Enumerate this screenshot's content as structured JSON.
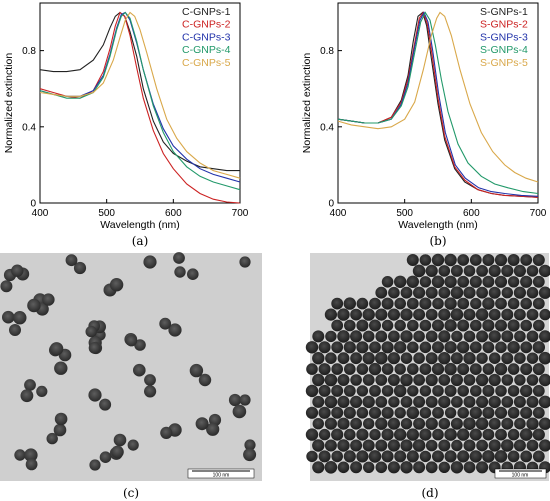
{
  "chart_data": [
    {
      "type": "line",
      "panel_label": "(a)",
      "xlabel": "Wavelength (nm)",
      "ylabel": "Normalized extinction",
      "xlim": [
        400,
        700
      ],
      "ylim": [
        0,
        1.05
      ],
      "xticks": [
        "400",
        "500",
        "600",
        "700"
      ],
      "yticks": [
        "0",
        "0.4",
        "0.8"
      ],
      "legend_position": "top-right",
      "series": [
        {
          "name": "C-GNPs-1",
          "color": "#222222",
          "x": [
            400,
            420,
            440,
            460,
            480,
            495,
            505,
            513,
            520,
            527,
            535,
            545,
            555,
            570,
            585,
            600,
            620,
            640,
            660,
            680,
            700
          ],
          "y": [
            0.7,
            0.69,
            0.69,
            0.7,
            0.75,
            0.83,
            0.92,
            0.98,
            1.0,
            0.98,
            0.9,
            0.77,
            0.6,
            0.43,
            0.32,
            0.26,
            0.22,
            0.19,
            0.18,
            0.17,
            0.17
          ]
        },
        {
          "name": "C-GNPs-2",
          "color": "#cc2222",
          "x": [
            400,
            420,
            440,
            460,
            480,
            495,
            505,
            513,
            520,
            527,
            535,
            545,
            555,
            570,
            585,
            600,
            620,
            640,
            660,
            680,
            700
          ],
          "y": [
            0.6,
            0.58,
            0.56,
            0.55,
            0.59,
            0.69,
            0.81,
            0.93,
            1.0,
            0.98,
            0.88,
            0.71,
            0.55,
            0.38,
            0.26,
            0.18,
            0.1,
            0.05,
            0.02,
            0.005,
            0
          ]
        },
        {
          "name": "C-GNPs-3",
          "color": "#2233aa",
          "x": [
            400,
            420,
            440,
            460,
            480,
            495,
            505,
            515,
            522,
            528,
            535,
            545,
            555,
            570,
            585,
            600,
            620,
            640,
            660,
            680,
            700
          ],
          "y": [
            0.59,
            0.57,
            0.56,
            0.56,
            0.59,
            0.67,
            0.78,
            0.92,
            0.99,
            1.0,
            0.96,
            0.84,
            0.7,
            0.52,
            0.39,
            0.3,
            0.23,
            0.18,
            0.15,
            0.13,
            0.11
          ]
        },
        {
          "name": "C-GNPs-4",
          "color": "#22996a",
          "x": [
            400,
            420,
            440,
            460,
            480,
            495,
            505,
            515,
            522,
            528,
            535,
            545,
            555,
            570,
            585,
            600,
            620,
            640,
            660,
            680,
            700
          ],
          "y": [
            0.59,
            0.57,
            0.55,
            0.55,
            0.58,
            0.66,
            0.77,
            0.91,
            0.98,
            1.0,
            0.97,
            0.85,
            0.7,
            0.51,
            0.37,
            0.27,
            0.19,
            0.14,
            0.11,
            0.09,
            0.07
          ]
        },
        {
          "name": "C-GNPs-5",
          "color": "#d9a84a",
          "x": [
            400,
            420,
            440,
            460,
            480,
            495,
            510,
            520,
            528,
            535,
            542,
            550,
            560,
            575,
            590,
            605,
            620,
            640,
            660,
            680,
            700
          ],
          "y": [
            0.58,
            0.57,
            0.56,
            0.56,
            0.58,
            0.63,
            0.75,
            0.87,
            0.96,
            1.0,
            0.98,
            0.91,
            0.79,
            0.6,
            0.44,
            0.34,
            0.27,
            0.21,
            0.17,
            0.15,
            0.13
          ]
        }
      ]
    },
    {
      "type": "line",
      "panel_label": "(b)",
      "xlabel": "Wavelength (nm)",
      "ylabel": "Normalized extinction",
      "xlim": [
        400,
        700
      ],
      "ylim": [
        0,
        1.05
      ],
      "xticks": [
        "400",
        "500",
        "600",
        "700"
      ],
      "yticks": [
        "0",
        "0.4",
        "0.8"
      ],
      "legend_position": "top-right",
      "series": [
        {
          "name": "S-GNPs-1",
          "color": "#222222",
          "x": [
            400,
            420,
            440,
            460,
            480,
            495,
            505,
            513,
            520,
            527,
            533,
            540,
            550,
            560,
            575,
            590,
            610,
            630,
            650,
            675,
            700
          ],
          "y": [
            0.44,
            0.43,
            0.42,
            0.42,
            0.45,
            0.54,
            0.67,
            0.85,
            0.98,
            1.0,
            0.93,
            0.76,
            0.52,
            0.33,
            0.18,
            0.11,
            0.07,
            0.05,
            0.04,
            0.035,
            0.03
          ]
        },
        {
          "name": "S-GNPs-2",
          "color": "#cc2222",
          "x": [
            400,
            420,
            440,
            460,
            480,
            495,
            505,
            515,
            522,
            528,
            534,
            541,
            550,
            560,
            575,
            590,
            610,
            630,
            650,
            675,
            700
          ],
          "y": [
            0.44,
            0.43,
            0.42,
            0.42,
            0.45,
            0.53,
            0.65,
            0.84,
            0.97,
            1.0,
            0.94,
            0.78,
            0.55,
            0.35,
            0.19,
            0.12,
            0.07,
            0.05,
            0.04,
            0.035,
            0.03
          ]
        },
        {
          "name": "S-GNPs-3",
          "color": "#2233aa",
          "x": [
            400,
            420,
            440,
            460,
            480,
            495,
            505,
            515,
            523,
            529,
            535,
            542,
            551,
            561,
            576,
            591,
            611,
            630,
            650,
            675,
            700
          ],
          "y": [
            0.44,
            0.43,
            0.42,
            0.42,
            0.44,
            0.52,
            0.63,
            0.82,
            0.96,
            1.0,
            0.95,
            0.8,
            0.57,
            0.37,
            0.2,
            0.13,
            0.08,
            0.06,
            0.05,
            0.04,
            0.035
          ]
        },
        {
          "name": "S-GNPs-4",
          "color": "#22996a",
          "x": [
            400,
            420,
            440,
            460,
            480,
            495,
            505,
            515,
            524,
            531,
            538,
            546,
            555,
            565,
            580,
            595,
            615,
            635,
            655,
            678,
            700
          ],
          "y": [
            0.44,
            0.43,
            0.42,
            0.42,
            0.44,
            0.51,
            0.61,
            0.79,
            0.95,
            1.0,
            0.96,
            0.83,
            0.65,
            0.48,
            0.31,
            0.21,
            0.14,
            0.1,
            0.08,
            0.06,
            0.05
          ]
        },
        {
          "name": "S-GNPs-5",
          "color": "#d9a84a",
          "x": [
            400,
            420,
            440,
            460,
            480,
            500,
            515,
            528,
            540,
            548,
            553,
            560,
            570,
            583,
            598,
            615,
            632,
            650,
            665,
            682,
            700
          ],
          "y": [
            0.43,
            0.41,
            0.4,
            0.39,
            0.4,
            0.44,
            0.53,
            0.7,
            0.88,
            0.97,
            1.0,
            0.98,
            0.88,
            0.7,
            0.52,
            0.37,
            0.27,
            0.2,
            0.16,
            0.13,
            0.11
          ]
        }
      ]
    }
  ],
  "images": [
    {
      "panel_label": "(c)",
      "scale_bar": "100 nm"
    },
    {
      "panel_label": "(d)",
      "scale_bar": "100 nm"
    }
  ]
}
